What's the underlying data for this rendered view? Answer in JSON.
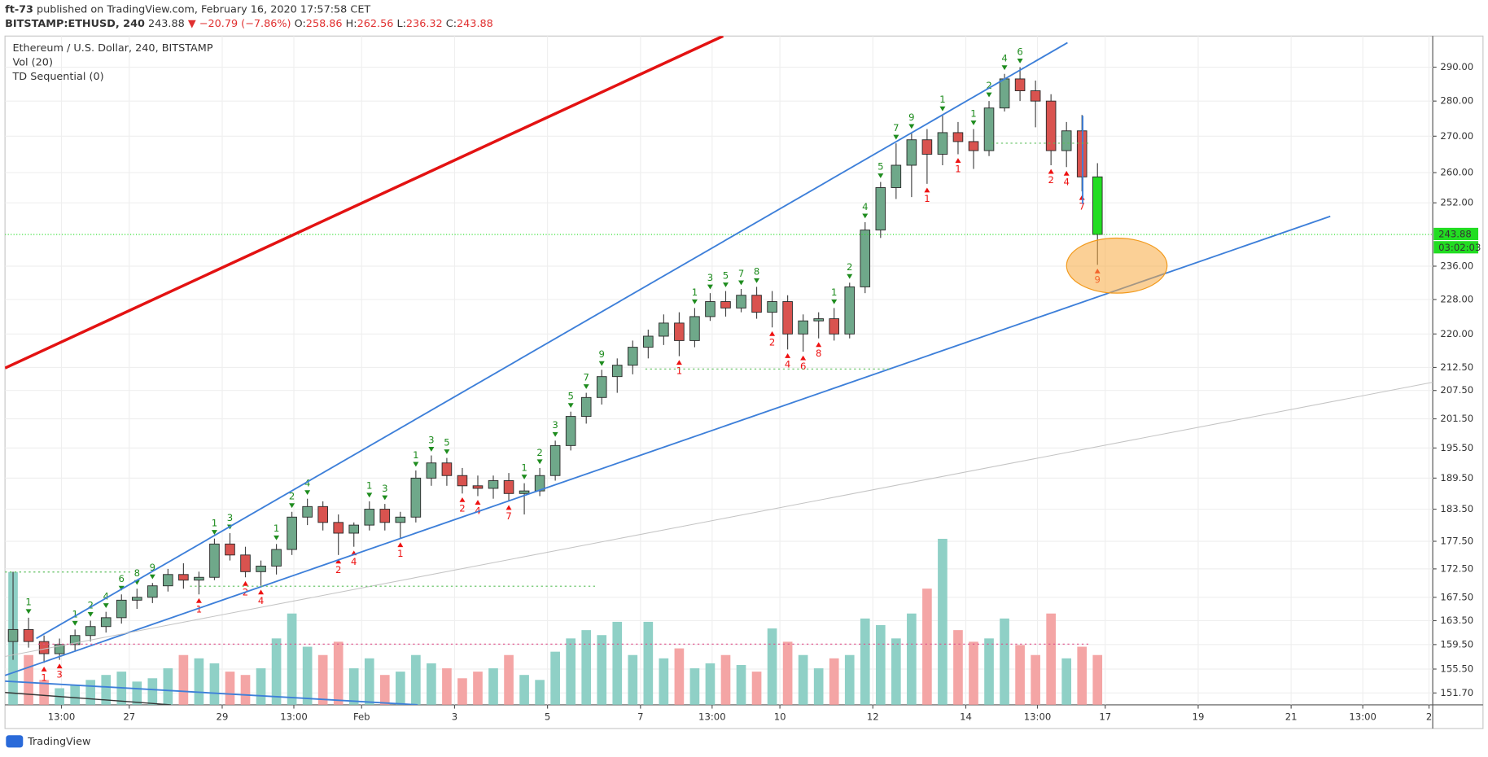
{
  "header": {
    "author": "ft-73",
    "published": "published on TradingView.com, February 16, 2020 17:57:58 CET",
    "symbol": "BITSTAMP:ETHUSD, 240",
    "price": 243.88,
    "change": "▼ −20.79 (−7.86%)",
    "ohlc": [
      {
        "label": "O:",
        "value": 258.86
      },
      {
        "label": "H:",
        "value": 262.56
      },
      {
        "label": "L:",
        "value": 236.32
      },
      {
        "label": "C:",
        "value": 243.88
      }
    ]
  },
  "footer": {
    "brand": "TradingView"
  },
  "chart_data": {
    "type": "candlestick",
    "title": "Ethereum / U.S. Dollar, 240, BITSTAMP",
    "indicators": [
      "Vol (20)",
      "TD Sequential (0)"
    ],
    "log_scale": true,
    "grid": true,
    "up_color": "#6fa88a",
    "down_color": "#d9534f",
    "last_color": "#22dd22",
    "volume_up_color": "#8fd0c6",
    "volume_down_color": "#f4a5a5",
    "td_sell_color": "#1e8c1e",
    "td_buy_color": "#ee1111",
    "open": [
      160,
      162,
      160,
      158,
      159.5,
      161,
      162.5,
      164,
      167,
      167.5,
      169.5,
      171.5,
      170.5,
      171,
      177,
      175,
      172,
      173,
      176,
      182,
      184,
      181,
      179,
      180.5,
      183.5,
      181,
      182,
      189.5,
      192.5,
      190,
      188,
      187.5,
      189,
      186.5,
      187,
      190,
      196,
      202,
      206,
      210.5,
      213,
      217,
      219.5,
      222.5,
      218.5,
      224,
      227.5,
      226,
      229,
      225,
      227.5,
      220,
      223,
      223.5,
      220,
      231,
      245,
      256,
      262,
      269,
      265,
      271,
      268.5,
      266,
      278,
      286.5,
      283,
      280,
      266,
      271.5,
      258.86
    ],
    "high": [
      172,
      164,
      161,
      160.5,
      162,
      163.5,
      165,
      168,
      169,
      170,
      172.5,
      173.5,
      172,
      178,
      179,
      176.5,
      174,
      177,
      183,
      185.5,
      185,
      182.5,
      181,
      185,
      184.5,
      183,
      191,
      194,
      193.5,
      191.5,
      190,
      190,
      190.5,
      188.5,
      191.5,
      197,
      203,
      207,
      212,
      214.5,
      218.5,
      221,
      224.5,
      225,
      226,
      229.5,
      230,
      230.5,
      231,
      230,
      229,
      224.5,
      225,
      226,
      232,
      247,
      257.5,
      268,
      271,
      272,
      276,
      274,
      272,
      280,
      288,
      290,
      286,
      282,
      274,
      276,
      262.56
    ],
    "low": [
      157,
      159,
      156.5,
      157,
      158.5,
      160,
      161.5,
      163,
      165.5,
      166.5,
      168.5,
      169,
      168,
      170.5,
      174,
      171,
      169.5,
      171.5,
      175,
      180.5,
      179.5,
      175,
      176.5,
      179.5,
      179.5,
      178,
      181,
      188,
      188,
      186.5,
      186,
      185.5,
      185,
      182.5,
      186,
      189,
      195,
      200.5,
      204.5,
      207,
      211,
      214.5,
      217.5,
      215,
      217,
      223,
      224,
      225,
      223.5,
      221.5,
      216.5,
      216,
      219,
      218.5,
      219,
      229.5,
      243,
      253,
      253.5,
      257,
      262,
      265,
      261,
      264.5,
      277,
      280,
      272.5,
      262,
      261.5,
      255,
      236.32
    ],
    "close": [
      162,
      160,
      158,
      159.5,
      161,
      162.5,
      164,
      167,
      167.5,
      169.5,
      171.5,
      170.5,
      171,
      177,
      175,
      172,
      173,
      176,
      182,
      184,
      181,
      179,
      180.5,
      183.5,
      181,
      182,
      189.5,
      192.5,
      190,
      188,
      187.5,
      189,
      186.5,
      187,
      190,
      196,
      202,
      206,
      210.5,
      213,
      217,
      219.5,
      222.5,
      218.5,
      224,
      227.5,
      226,
      229,
      225,
      227.5,
      220,
      223,
      223.5,
      220,
      231,
      245,
      256,
      262,
      269,
      265,
      271,
      268.5,
      266,
      278,
      286.5,
      283,
      280,
      266,
      271.5,
      258.86,
      243.88
    ],
    "volume": [
      80,
      30,
      15,
      10,
      12,
      15,
      18,
      20,
      14,
      16,
      22,
      30,
      28,
      25,
      20,
      18,
      22,
      40,
      55,
      35,
      30,
      38,
      22,
      28,
      18,
      20,
      30,
      25,
      22,
      16,
      20,
      22,
      30,
      18,
      15,
      32,
      40,
      45,
      42,
      50,
      30,
      50,
      28,
      34,
      22,
      25,
      30,
      24,
      20,
      46,
      38,
      30,
      22,
      28,
      30,
      52,
      48,
      40,
      55,
      70,
      100,
      45,
      38,
      40,
      52,
      36,
      30,
      55,
      28,
      35,
      30
    ],
    "td_sell": [
      null,
      1,
      null,
      null,
      1,
      2,
      4,
      6,
      8,
      9,
      null,
      null,
      null,
      1,
      3,
      null,
      null,
      1,
      2,
      4,
      null,
      null,
      null,
      1,
      3,
      null,
      1,
      3,
      5,
      null,
      null,
      null,
      null,
      1,
      2,
      3,
      5,
      7,
      9,
      null,
      null,
      null,
      null,
      null,
      1,
      3,
      5,
      7,
      8,
      null,
      null,
      null,
      null,
      1,
      2,
      4,
      5,
      7,
      9,
      null,
      1,
      null,
      1,
      2,
      4,
      6,
      null,
      null,
      null,
      null,
      null
    ],
    "td_buy": [
      null,
      null,
      1,
      3,
      null,
      null,
      null,
      null,
      null,
      null,
      null,
      null,
      1,
      null,
      null,
      2,
      4,
      null,
      null,
      null,
      null,
      2,
      4,
      null,
      null,
      1,
      null,
      null,
      null,
      2,
      4,
      null,
      7,
      null,
      null,
      null,
      null,
      null,
      null,
      null,
      null,
      null,
      null,
      1,
      null,
      null,
      null,
      null,
      null,
      2,
      4,
      6,
      8,
      null,
      null,
      null,
      null,
      null,
      null,
      1,
      null,
      1,
      null,
      null,
      null,
      null,
      null,
      2,
      4,
      7,
      9
    ],
    "xlim": [
      -0.52,
      91.64
    ],
    "xticks": [
      {
        "value": 3.125,
        "label": "13:00"
      },
      {
        "value": 7.5,
        "label": "27"
      },
      {
        "value": 13.5,
        "label": "29"
      },
      {
        "value": 18.125,
        "label": "13:00"
      },
      {
        "value": 22.5,
        "label": "Feb"
      },
      {
        "value": 28.5,
        "label": "3"
      },
      {
        "value": 34.5,
        "label": "5"
      },
      {
        "value": 40.5,
        "label": "7"
      },
      {
        "value": 45.125,
        "label": "13:00"
      },
      {
        "value": 49.5,
        "label": "10"
      },
      {
        "value": 55.5,
        "label": "12"
      },
      {
        "value": 61.5,
        "label": "14"
      },
      {
        "value": 66.125,
        "label": "13:00"
      },
      {
        "value": 70.5,
        "label": "17"
      },
      {
        "value": 76.5,
        "label": "19"
      },
      {
        "value": 82.5,
        "label": "21"
      },
      {
        "value": 87.125,
        "label": "13:00"
      },
      {
        "value": 91.4,
        "label": "2"
      }
    ],
    "ylim": [
      149.85,
      299.5
    ],
    "yticks": [
      {
        "value": 290,
        "label": "290.00"
      },
      {
        "value": 280,
        "label": "280.00"
      },
      {
        "value": 270,
        "label": "270.00"
      },
      {
        "value": 260,
        "label": "260.00"
      },
      {
        "value": 252,
        "label": "252.00"
      },
      {
        "value": 236,
        "label": "236.00"
      },
      {
        "value": 228,
        "label": "228.00"
      },
      {
        "value": 220,
        "label": "220.00"
      },
      {
        "value": 212.5,
        "label": "212.50"
      },
      {
        "value": 207.5,
        "label": "207.50"
      },
      {
        "value": 201.5,
        "label": "201.50"
      },
      {
        "value": 195.5,
        "label": "195.50"
      },
      {
        "value": 189.5,
        "label": "189.50"
      },
      {
        "value": 183.5,
        "label": "183.50"
      },
      {
        "value": 177.5,
        "label": "177.50"
      },
      {
        "value": 172.5,
        "label": "172.50"
      },
      {
        "value": 167.5,
        "label": "167.50"
      },
      {
        "value": 163.5,
        "label": "163.50"
      },
      {
        "value": 159.5,
        "label": "159.50"
      },
      {
        "value": 155.5,
        "label": "155.50"
      },
      {
        "value": 151.7,
        "label": "151.70"
      }
    ],
    "last_price": 243.88,
    "countdown": "03:02:03"
  }
}
